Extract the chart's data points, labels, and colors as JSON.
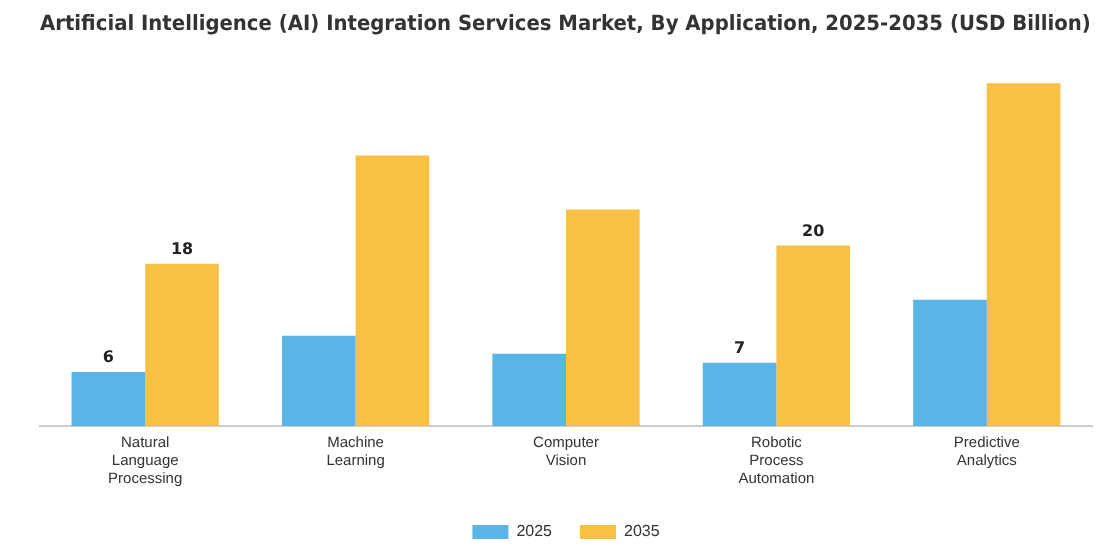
{
  "chart_data": {
    "type": "bar",
    "title": "Artificial Intelligence (AI) Integration Services Market, By Application, 2025-2035 (USD Billion)",
    "categories": [
      "Natural Language Processing",
      "Machine Learning",
      "Computer Vision",
      "Robotic Process Automation",
      "Predictive Analytics"
    ],
    "tick_labels": "x",
    "legend": "bottom",
    "grid": false,
    "series": [
      {
        "name": "2025",
        "color": "#5ab4e5",
        "values": [
          6,
          10,
          8,
          7,
          14
        ],
        "value_labels": [
          "6",
          null,
          null,
          "7",
          null
        ]
      },
      {
        "name": "2035",
        "color": "#f8c146",
        "values": [
          18,
          30,
          24,
          20,
          38
        ],
        "value_labels": [
          "18",
          null,
          null,
          "20",
          null
        ]
      }
    ]
  }
}
